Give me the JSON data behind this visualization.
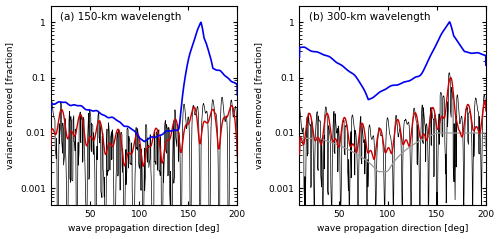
{
  "title_a": "(a) 150-km wavelength",
  "title_b": "(b) 300-km wavelength",
  "xlabel": "wave propagation direction [deg]",
  "ylabel": "variance removed [fraction]",
  "xlim": [
    10,
    200
  ],
  "xticks": [
    50,
    100,
    150,
    200
  ],
  "yticks": [
    0.001,
    0.01,
    0.1,
    1
  ],
  "ylim": [
    0.0005,
    2.0
  ],
  "background_color": "#ffffff",
  "blue_color": "#0000ee",
  "red_color": "#cc0000",
  "dark_red_color": "#880000",
  "black_color": "#000000",
  "gray_color": "#999999",
  "lw_blue": 1.2,
  "lw_red": 1.0,
  "lw_black": 0.5,
  "lw_gray": 0.9,
  "title_fontsize": 7.5,
  "label_fontsize": 6.5,
  "tick_fontsize": 6.5
}
